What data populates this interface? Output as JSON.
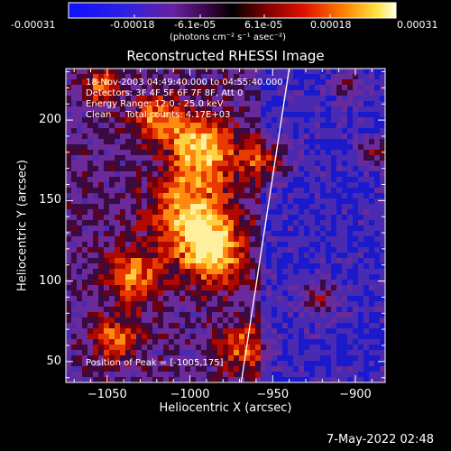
{
  "colorbar": {
    "tick_labels": [
      "-0.00031",
      "-0.00018",
      "-6.1e-05",
      "6.1e-05",
      "0.00018",
      "0.00031"
    ],
    "units_label": "(photons cm⁻² s⁻¹ asec⁻²)",
    "min": -0.00031,
    "max": 0.00031
  },
  "title": "Reconstructed RHESSI Image",
  "info": {
    "time_range": "18-Nov-2003 04:49:40.000 to 04:55:40.000",
    "detectors": "Detectors: 3F 4F 5F 6F 7F 8F, Att 0",
    "energy_range": "Energy Range: 12.0 - 25.0 keV",
    "clean_counts": "Clean     Total counts: 4.17E+03",
    "peak": "Position of Peak = [-1005,175]"
  },
  "axes": {
    "xlabel": "Heliocentric X (arcsec)",
    "ylabel": "Heliocentric Y (arcsec)",
    "xticks": [
      {
        "value": -1050,
        "label": "−1050"
      },
      {
        "value": -1000,
        "label": "−1000"
      },
      {
        "value": -950,
        "label": "−950"
      },
      {
        "value": -900,
        "label": "−900"
      }
    ],
    "yticks": [
      {
        "value": 50,
        "label": "50"
      },
      {
        "value": 100,
        "label": "100"
      },
      {
        "value": 150,
        "label": "150"
      },
      {
        "value": 200,
        "label": "200"
      }
    ],
    "xrange": [
      -1075,
      -882
    ],
    "yrange": [
      37,
      232
    ]
  },
  "limb_line": {
    "points": [
      [
        -969,
        37
      ],
      [
        -940,
        232
      ]
    ],
    "color": "#ffffff"
  },
  "timestamp": "7-May-2022 02:48"
}
